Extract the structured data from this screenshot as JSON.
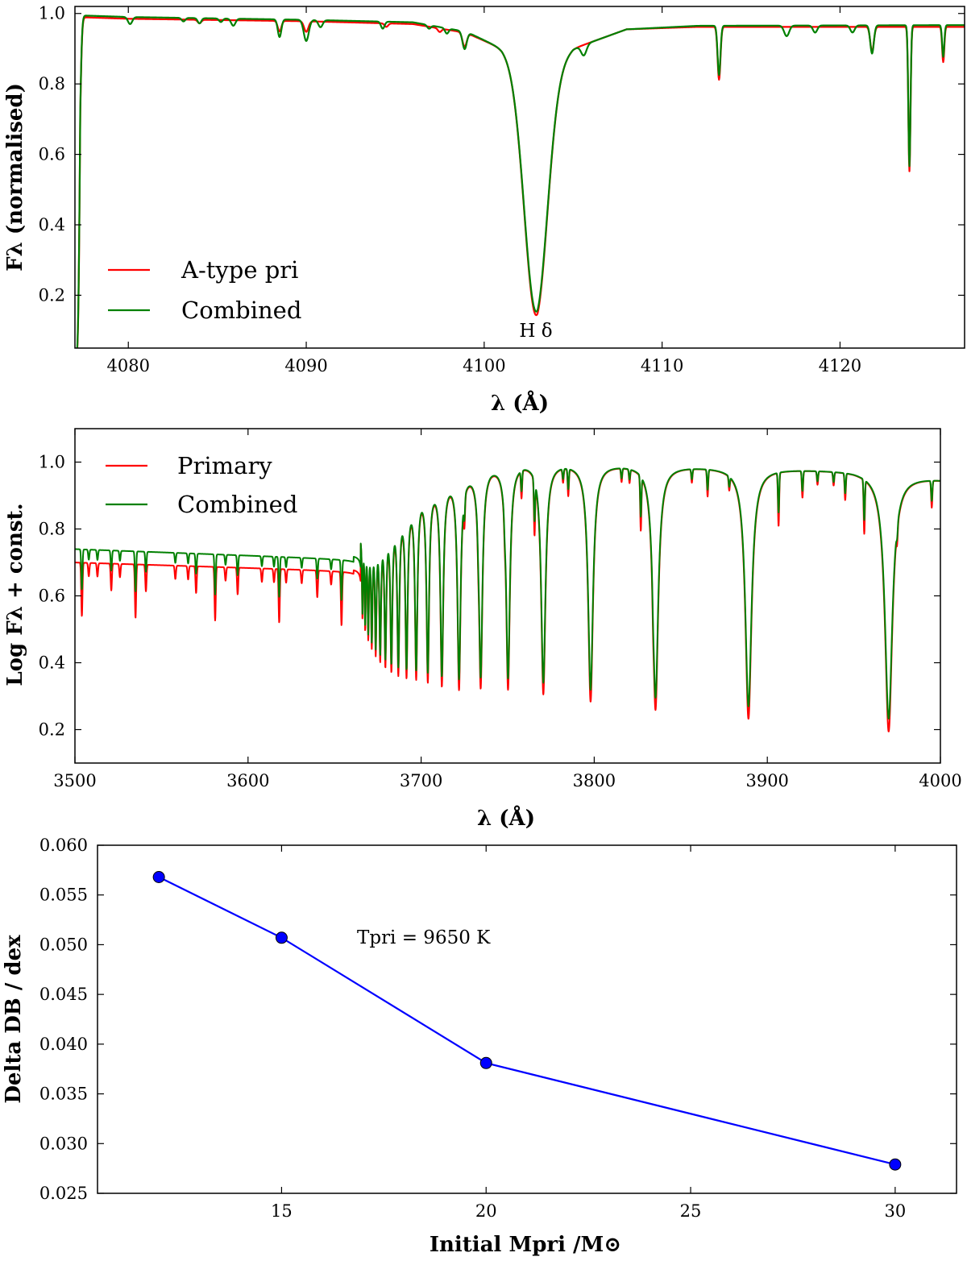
{
  "chart_data": [
    {
      "type": "line",
      "title": "",
      "xlabel": "λ (Å)",
      "ylabel": "Fλ (normalised)",
      "xlim": [
        4077,
        4127
      ],
      "ylim": [
        0.05,
        1.02
      ],
      "xticks": [
        4080,
        4090,
        4100,
        4110,
        4120
      ],
      "yticks": [
        0.2,
        0.4,
        0.6,
        0.8,
        1.0
      ],
      "ytick_labels": [
        "0.2",
        "0.4",
        "0.6",
        "0.8",
        "1.0"
      ],
      "continuum": {
        "A-type pri": [
          [
            4077,
            0.99
          ],
          [
            4080,
            0.985
          ],
          [
            4090,
            0.978
          ],
          [
            4096,
            0.97
          ],
          [
            4099,
            0.945
          ],
          [
            4101,
            0.9
          ],
          [
            4103,
            0.82
          ],
          [
            4105,
            0.9
          ],
          [
            4108,
            0.955
          ],
          [
            4112,
            0.962
          ],
          [
            4127,
            0.962
          ]
        ],
        "Combined": [
          [
            4077,
            0.995
          ],
          [
            4080,
            0.99
          ],
          [
            4090,
            0.982
          ],
          [
            4096,
            0.975
          ],
          [
            4099,
            0.948
          ],
          [
            4101,
            0.9
          ],
          [
            4103,
            0.82
          ],
          [
            4105,
            0.9
          ],
          [
            4108,
            0.955
          ],
          [
            4112,
            0.965
          ],
          [
            4127,
            0.967
          ]
        ]
      },
      "series": [
        {
          "name": "A-type pri",
          "color": "#ff0000",
          "lines": [
            [
              4077.2,
              0.45,
              0.1
            ],
            [
              4084.0,
              0.01,
              0.1
            ],
            [
              4088.5,
              0.03,
              0.1
            ],
            [
              4090.0,
              0.03,
              0.12
            ],
            [
              4094.5,
              0.01,
              0.1
            ],
            [
              4097.5,
              0.01,
              0.1
            ],
            [
              4098.9,
              0.04,
              0.12
            ],
            [
              4102.9,
              0.68,
              0.65
            ],
            [
              4113.2,
              0.15,
              0.08
            ],
            [
              4121.8,
              0.07,
              0.1
            ],
            [
              4123.9,
              0.41,
              0.06
            ],
            [
              4125.8,
              0.1,
              0.06
            ]
          ]
        },
        {
          "name": "Combined",
          "color": "#008000",
          "lines": [
            [
              4077.2,
              0.44,
              0.1
            ],
            [
              4080.1,
              0.02,
              0.12
            ],
            [
              4083.1,
              0.01,
              0.1
            ],
            [
              4084.0,
              0.015,
              0.1
            ],
            [
              4085.2,
              0.01,
              0.1
            ],
            [
              4085.9,
              0.02,
              0.12
            ],
            [
              4088.5,
              0.05,
              0.1
            ],
            [
              4090.0,
              0.06,
              0.14
            ],
            [
              4090.8,
              0.02,
              0.12
            ],
            [
              4094.3,
              0.02,
              0.1
            ],
            [
              4096.9,
              0.01,
              0.1
            ],
            [
              4097.9,
              0.015,
              0.1
            ],
            [
              4098.9,
              0.05,
              0.12
            ],
            [
              4102.9,
              0.67,
              0.65
            ],
            [
              4105.6,
              0.03,
              0.15
            ],
            [
              4113.2,
              0.14,
              0.08
            ],
            [
              4117.0,
              0.03,
              0.14
            ],
            [
              4118.6,
              0.02,
              0.12
            ],
            [
              4120.7,
              0.02,
              0.12
            ],
            [
              4121.8,
              0.08,
              0.1
            ],
            [
              4123.9,
              0.4,
              0.06
            ],
            [
              4125.8,
              0.09,
              0.06
            ]
          ]
        }
      ],
      "legend": [
        "A-type pri",
        "Combined"
      ],
      "legend_location": "lower-left",
      "annotations": [
        {
          "text": "H δ",
          "x": 4103.0,
          "y": 0.065
        }
      ]
    },
    {
      "type": "line",
      "title": "",
      "xlabel": "λ (Å)",
      "ylabel": "Log Fλ + const.",
      "xlim": [
        3500,
        4000
      ],
      "ylim": [
        0.1,
        1.1
      ],
      "xticks": [
        3500,
        3600,
        3700,
        3800,
        3900,
        4000
      ],
      "yticks": [
        0.2,
        0.4,
        0.6,
        0.8,
        1.0
      ],
      "ytick_labels": [
        "0.2",
        "0.4",
        "0.6",
        "0.8",
        "1.0"
      ],
      "balmer_lines": [
        {
          "x": 3970.1,
          "depth": 0.77,
          "width": 2.6
        },
        {
          "x": 3889.1,
          "depth": 0.75,
          "width": 2.2
        },
        {
          "x": 3835.4,
          "depth": 0.73,
          "width": 1.9
        },
        {
          "x": 3797.9,
          "depth": 0.71,
          "width": 1.7
        },
        {
          "x": 3770.6,
          "depth": 0.69,
          "width": 1.5
        },
        {
          "x": 3750.2,
          "depth": 0.67,
          "width": 1.3
        },
        {
          "x": 3734.4,
          "depth": 0.65,
          "width": 1.2
        },
        {
          "x": 3721.9,
          "depth": 0.63,
          "width": 1.1
        },
        {
          "x": 3711.97,
          "depth": 0.6,
          "width": 1.0
        },
        {
          "x": 3703.86,
          "depth": 0.57,
          "width": 0.9
        },
        {
          "x": 3697.15,
          "depth": 0.54,
          "width": 0.85
        },
        {
          "x": 3691.56,
          "depth": 0.51,
          "width": 0.8
        },
        {
          "x": 3686.83,
          "depth": 0.48,
          "width": 0.75
        },
        {
          "x": 3682.81,
          "depth": 0.45,
          "width": 0.7
        },
        {
          "x": 3679.35,
          "depth": 0.42,
          "width": 0.65
        },
        {
          "x": 3676.36,
          "depth": 0.39,
          "width": 0.6
        },
        {
          "x": 3673.76,
          "depth": 0.36,
          "width": 0.55
        },
        {
          "x": 3671.48,
          "depth": 0.33,
          "width": 0.5
        },
        {
          "x": 3669.46,
          "depth": 0.3,
          "width": 0.45
        },
        {
          "x": 3667.68,
          "depth": 0.27,
          "width": 0.4
        },
        {
          "x": 3666.1,
          "depth": 0.24,
          "width": 0.35
        }
      ],
      "metal_lines": [
        3504,
        3508,
        3513,
        3521,
        3526,
        3535,
        3541,
        3558,
        3565.4,
        3570,
        3581,
        3587,
        3594,
        3608,
        3615,
        3618,
        3622,
        3631,
        3640,
        3648,
        3654,
        3725,
        3733,
        3748.3,
        3758,
        3765.5,
        3782,
        3785,
        3815.8,
        3820.4,
        3826.9,
        3834,
        3856.4,
        3865.5,
        3878,
        3906.5,
        3920.3,
        3929,
        3938.3,
        3945,
        3956,
        3975,
        3995
      ],
      "series": [
        {
          "name": "Primary",
          "color": "#ff0000"
        },
        {
          "name": "Combined",
          "color": "#008000"
        }
      ],
      "legend": [
        "Primary",
        "Combined"
      ],
      "legend_location": "top-left"
    },
    {
      "type": "line",
      "title": "",
      "xlabel": "Initial Mpri /M⊙",
      "ylabel": "Delta DB / dex",
      "xlim": [
        10.5,
        31.5
      ],
      "ylim": [
        0.025,
        0.06
      ],
      "xticks": [
        15,
        20,
        25,
        30
      ],
      "yticks": [
        0.025,
        0.03,
        0.035,
        0.04,
        0.045,
        0.05,
        0.055,
        0.06
      ],
      "ytick_labels": [
        "0.025",
        "0.030",
        "0.035",
        "0.040",
        "0.045",
        "0.050",
        "0.055",
        "0.060"
      ],
      "series": [
        {
          "name": "Delta DB",
          "color": "#0000ff",
          "x": [
            12,
            15,
            20,
            30
          ],
          "values": [
            0.0568,
            0.0507,
            0.0381,
            0.0279
          ]
        }
      ],
      "annotations": [
        {
          "text": "Tpri = 9650 K",
          "x": 17.6,
          "y": 0.0507
        }
      ]
    }
  ]
}
